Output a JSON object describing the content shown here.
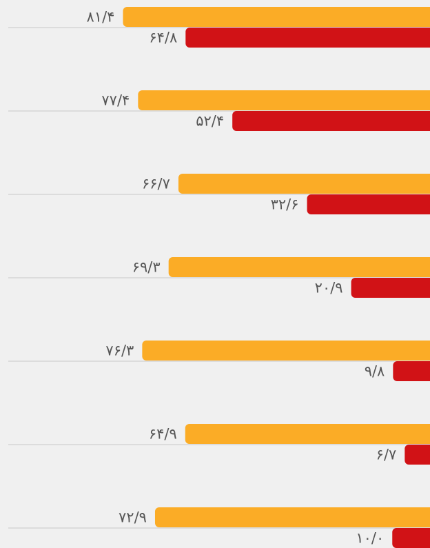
{
  "chart_data": {
    "type": "bar",
    "orientation": "horizontal",
    "invert_x": true,
    "categories": [
      null,
      null,
      null,
      null,
      null,
      null,
      null
    ],
    "xlim": [
      0,
      114
    ],
    "series": [
      {
        "color": "#fbac26",
        "values": [
          81.4,
          77.4,
          66.7,
          69.3,
          76.3,
          64.9,
          72.9
        ],
        "value_labels": [
          "۸۱/۴",
          "۷۷/۴",
          "۶۶/۷",
          "۶۹/۳",
          "۷۶/۳",
          "۶۴/۹",
          "۷۲/۹"
        ]
      },
      {
        "color": "#d11216",
        "values": [
          64.8,
          52.4,
          32.6,
          20.9,
          9.8,
          6.7,
          10.0
        ],
        "value_labels": [
          "۶۴/۸",
          "۵۲/۴",
          "۳۲/۶",
          "۲۰/۹",
          "۹/۸",
          "۶/۷",
          "۱۰/۰"
        ]
      }
    ]
  }
}
